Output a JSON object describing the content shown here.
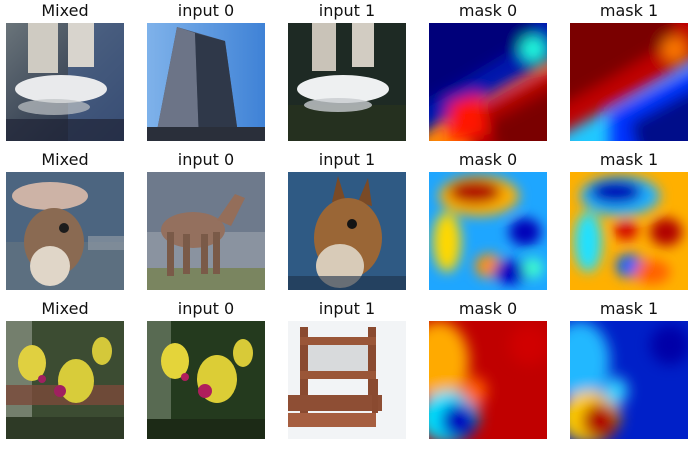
{
  "figure": {
    "rows": [
      {
        "panels": [
          {
            "title": "Mixed",
            "kind": "photo"
          },
          {
            "title": "input 0",
            "kind": "photo"
          },
          {
            "title": "input 1",
            "kind": "photo"
          },
          {
            "title": "mask 0",
            "kind": "heatmap"
          },
          {
            "title": "mask 1",
            "kind": "heatmap"
          }
        ]
      },
      {
        "panels": [
          {
            "title": "Mixed",
            "kind": "photo"
          },
          {
            "title": "input 0",
            "kind": "photo"
          },
          {
            "title": "input 1",
            "kind": "photo"
          },
          {
            "title": "mask 0",
            "kind": "heatmap"
          },
          {
            "title": "mask 1",
            "kind": "heatmap"
          }
        ]
      },
      {
        "panels": [
          {
            "title": "Mixed",
            "kind": "photo"
          },
          {
            "title": "input 0",
            "kind": "photo"
          },
          {
            "title": "input 1",
            "kind": "photo"
          },
          {
            "title": "mask 0",
            "kind": "heatmap"
          },
          {
            "title": "mask 1",
            "kind": "heatmap"
          }
        ]
      }
    ],
    "colormap": "jet"
  }
}
